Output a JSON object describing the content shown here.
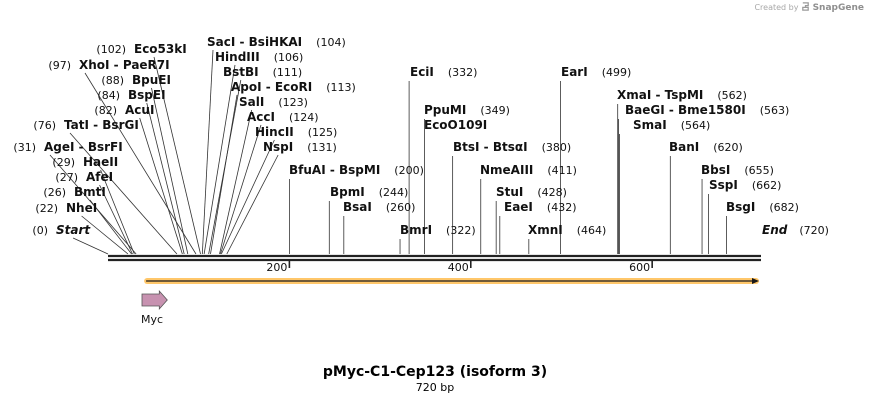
{
  "credit": {
    "prefix": "Created by",
    "brand": "SnapGene",
    "logo_icon": "snapgene-logo-icon"
  },
  "title": "pMyc-C1-Cep123 (isoform 3)",
  "length_label": "720 bp",
  "sequence_length": 720,
  "colors": {
    "backbone": "#222222",
    "orf_fill": "#ffc15a",
    "orf_line": "#1a1a1a",
    "feature_fill": "#c792b0",
    "feature_stroke": "#555555",
    "site_line": "#333333"
  },
  "ticks": [
    {
      "pos": 200,
      "label": "200"
    },
    {
      "pos": 400,
      "label": "400"
    },
    {
      "pos": 600,
      "label": "600"
    }
  ],
  "orf": {
    "start": 42,
    "end": 720,
    "direction": "forward"
  },
  "features": [
    {
      "name": "Myc",
      "start": 43,
      "end": 72,
      "direction": "forward"
    }
  ],
  "sites": [
    {
      "name": "Start",
      "pos": 0,
      "label": "(0)",
      "italic": true
    },
    {
      "name": "NheI",
      "pos": 22,
      "label": "(22)"
    },
    {
      "name": "BmtI",
      "pos": 26,
      "label": "(26)"
    },
    {
      "name": "AfeI",
      "pos": 27,
      "label": "(27)"
    },
    {
      "name": "HaeII",
      "pos": 29,
      "label": "(29)"
    },
    {
      "name": "AgeI  - BsrFI",
      "pos": 31,
      "label": "(31)"
    },
    {
      "name": "TatI  - BsrGI",
      "pos": 76,
      "label": "(76)"
    },
    {
      "name": "AcuI",
      "pos": 82,
      "label": "(82)"
    },
    {
      "name": "BspEI",
      "pos": 84,
      "label": "(84)"
    },
    {
      "name": "BpuEI",
      "pos": 88,
      "label": "(88)"
    },
    {
      "name": "XhoI  - PaeR7I",
      "pos": 97,
      "label": "(97)"
    },
    {
      "name": "Eco53kI",
      "pos": 102,
      "label": "(102)"
    },
    {
      "name": "SacI  - BsiHKAI",
      "pos": 104,
      "label": "(104)"
    },
    {
      "name": "HindIII",
      "pos": 106,
      "label": "(106)"
    },
    {
      "name": "BstBI",
      "pos": 111,
      "label": "(111)"
    },
    {
      "name": "ApoI  - EcoRI",
      "pos": 113,
      "label": "(113)"
    },
    {
      "name": "SalI",
      "pos": 123,
      "label": "(123)"
    },
    {
      "name": "AccI",
      "pos": 124,
      "label": "(124)"
    },
    {
      "name": "HincII",
      "pos": 125,
      "label": "(125)"
    },
    {
      "name": "NspI",
      "pos": 131,
      "label": "(131)"
    },
    {
      "name": "BfuAI  - BspMI",
      "pos": 200,
      "label": "(200)"
    },
    {
      "name": "BpmI",
      "pos": 244,
      "label": "(244)"
    },
    {
      "name": "BsaI",
      "pos": 260,
      "label": "(260)"
    },
    {
      "name": "BmrI",
      "pos": 322,
      "label": "(322)"
    },
    {
      "name": "EciI",
      "pos": 332,
      "label": "(332)"
    },
    {
      "name": "PpuMI",
      "pos": 349,
      "label": "(349)"
    },
    {
      "name": "EcoO109I",
      "pos": 349,
      "label": ""
    },
    {
      "name": "BtsI  - BtsαI",
      "pos": 380,
      "label": "(380)"
    },
    {
      "name": "NmeAIII",
      "pos": 411,
      "label": "(411)"
    },
    {
      "name": "StuI",
      "pos": 428,
      "label": "(428)"
    },
    {
      "name": "EaeI",
      "pos": 432,
      "label": "(432)"
    },
    {
      "name": "XmnI",
      "pos": 464,
      "label": "(464)"
    },
    {
      "name": "EarI",
      "pos": 499,
      "label": "(499)"
    },
    {
      "name": "XmaI  - TspMI",
      "pos": 562,
      "label": "(562)"
    },
    {
      "name": "BaeGI  - Bme1580I",
      "pos": 563,
      "label": "(563)"
    },
    {
      "name": "SmaI",
      "pos": 564,
      "label": "(564)"
    },
    {
      "name": "BanI",
      "pos": 620,
      "label": "(620)"
    },
    {
      "name": "BbsI",
      "pos": 655,
      "label": "(655)"
    },
    {
      "name": "SspI",
      "pos": 662,
      "label": "(662)"
    },
    {
      "name": "BsgI",
      "pos": 682,
      "label": "(682)"
    },
    {
      "name": "End",
      "pos": 720,
      "label": "(720)",
      "italic": true
    }
  ]
}
